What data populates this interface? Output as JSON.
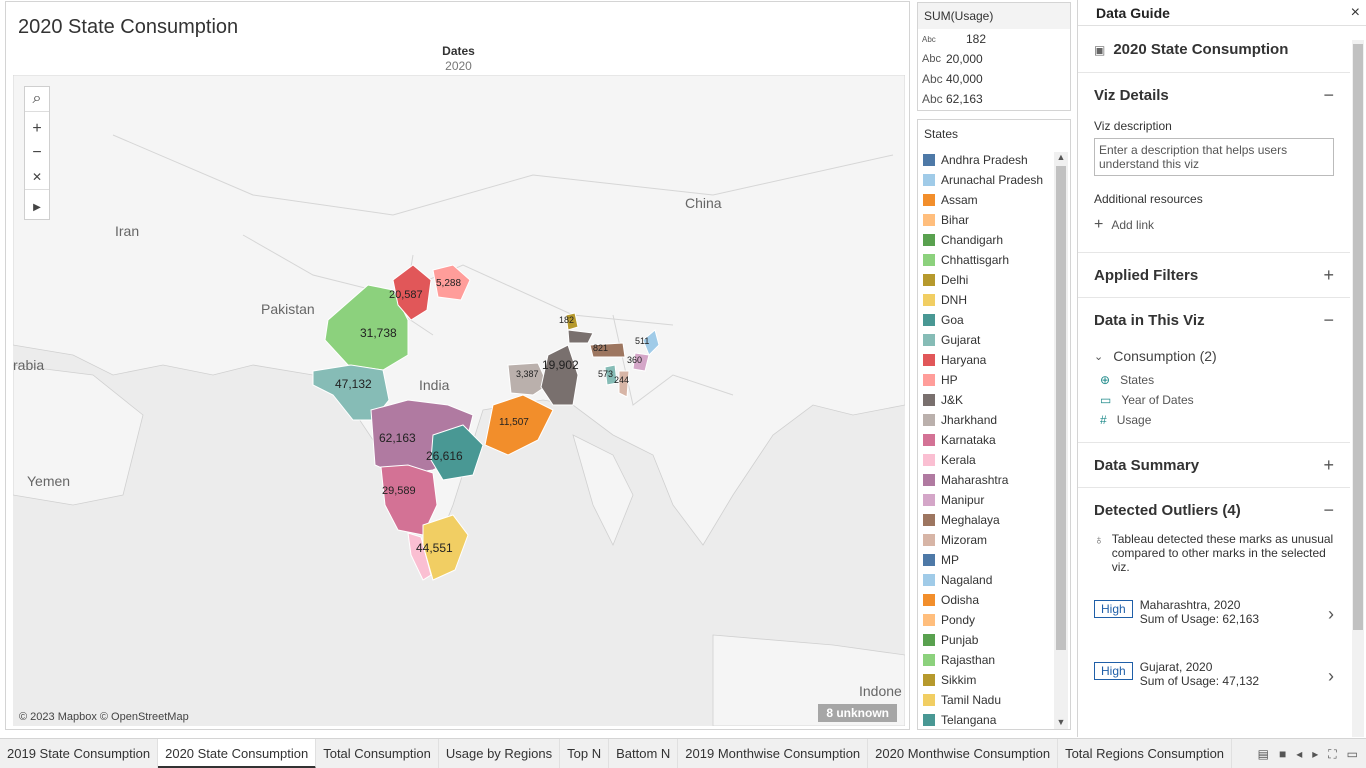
{
  "viz": {
    "title": "2020 State Consumption",
    "dates_header": "Dates",
    "dates_value": "2020",
    "copyright": "© 2023 Mapbox © OpenStreetMap",
    "unknown_badge": "8 unknown",
    "map_labels": {
      "china": "China",
      "iran": "Iran",
      "pakistan": "Pakistan",
      "india": "India",
      "arabia": "rabia",
      "yemen": "Yemen",
      "indonesia": "Indone"
    },
    "state_values": {
      "maharashtra": "62,163",
      "gujarat": "47,132",
      "tamil_nadu": "44,551",
      "rajasthan": "31,738",
      "karnataka": "29,589",
      "telangana": "26,616",
      "haryana": "20,587",
      "jk_east": "19,902",
      "odisha": "11,507",
      "hp": "5,288",
      "jharkhand": "3,387",
      "meghalaya": "821",
      "nagaland": "511",
      "manipur": "360",
      "tripura": "573",
      "mizoram": "244",
      "sikkim": "182"
    }
  },
  "size_legend": {
    "title": "SUM(Usage)",
    "abc": "Abc",
    "values": [
      "182",
      "20,000",
      "40,000",
      "62,163"
    ]
  },
  "states_legend": {
    "title": "States",
    "items": [
      {
        "label": "Andhra Pradesh",
        "color": "#4e79a7"
      },
      {
        "label": "Arunachal Pradesh",
        "color": "#a0cbe8"
      },
      {
        "label": "Assam",
        "color": "#f28e2b"
      },
      {
        "label": "Bihar",
        "color": "#ffbe7d"
      },
      {
        "label": "Chandigarh",
        "color": "#59a14f"
      },
      {
        "label": "Chhattisgarh",
        "color": "#8cd17d"
      },
      {
        "label": "Delhi",
        "color": "#b6992d"
      },
      {
        "label": "DNH",
        "color": "#f1ce63"
      },
      {
        "label": "Goa",
        "color": "#499894"
      },
      {
        "label": "Gujarat",
        "color": "#86bcb6"
      },
      {
        "label": "Haryana",
        "color": "#e15759"
      },
      {
        "label": "HP",
        "color": "#ff9d9a"
      },
      {
        "label": "J&K",
        "color": "#79706e"
      },
      {
        "label": "Jharkhand",
        "color": "#bab0ac"
      },
      {
        "label": "Karnataka",
        "color": "#d37295"
      },
      {
        "label": "Kerala",
        "color": "#fabfd2"
      },
      {
        "label": "Maharashtra",
        "color": "#b07aa1"
      },
      {
        "label": "Manipur",
        "color": "#d4a6c8"
      },
      {
        "label": "Meghalaya",
        "color": "#9d7660"
      },
      {
        "label": "Mizoram",
        "color": "#d7b5a6"
      },
      {
        "label": "MP",
        "color": "#4e79a7"
      },
      {
        "label": "Nagaland",
        "color": "#a0cbe8"
      },
      {
        "label": "Odisha",
        "color": "#f28e2b"
      },
      {
        "label": "Pondy",
        "color": "#ffbe7d"
      },
      {
        "label": "Punjab",
        "color": "#59a14f"
      },
      {
        "label": "Rajasthan",
        "color": "#8cd17d"
      },
      {
        "label": "Sikkim",
        "color": "#b6992d"
      },
      {
        "label": "Tamil Nadu",
        "color": "#f1ce63"
      },
      {
        "label": "Telangana",
        "color": "#499894"
      }
    ]
  },
  "guide": {
    "title": "Data Guide",
    "close": "×",
    "sheet_name": "2020 State Consumption",
    "viz_details": "Viz Details",
    "viz_description_label": "Viz description",
    "viz_description_placeholder": "Enter a description that helps users understand this viz",
    "additional_resources": "Additional resources",
    "add_link": "Add link",
    "applied_filters": "Applied Filters",
    "data_in_viz": "Data in This Viz",
    "datasource": "Consumption (2)",
    "fields": [
      "States",
      "Year of Dates",
      "Usage"
    ],
    "data_summary": "Data Summary",
    "detected_outliers": "Detected Outliers (4)",
    "outliers_note": "Tableau detected these marks as unusual compared to other marks in the selected viz.",
    "outliers": [
      {
        "badge": "High",
        "line1": "Maharashtra, 2020",
        "line2": "Sum of Usage: 62,163"
      },
      {
        "badge": "High",
        "line1": "Gujarat, 2020",
        "line2": "Sum of Usage: 47,132"
      }
    ]
  },
  "tabs": [
    {
      "label": "2019 State Consumption",
      "active": false
    },
    {
      "label": "2020 State Consumption",
      "active": true
    },
    {
      "label": "Total Consumption",
      "active": false
    },
    {
      "label": "Usage by Regions",
      "active": false
    },
    {
      "label": "Top N",
      "active": false
    },
    {
      "label": "Battom N",
      "active": false
    },
    {
      "label": "2019 Monthwise Consumption",
      "active": false
    },
    {
      "label": "2020 Monthwise Consumption",
      "active": false
    },
    {
      "label": "Total Regions Consumption",
      "active": false
    }
  ]
}
